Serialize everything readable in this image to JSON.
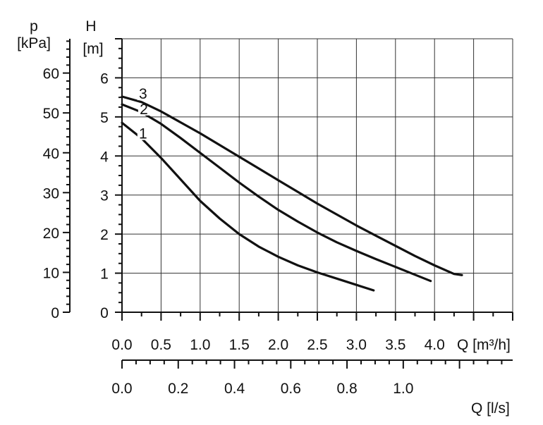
{
  "chart_data": {
    "type": "line",
    "axes": {
      "q_m3h": {
        "label": "Q [m³/h]",
        "range": [
          0,
          5
        ],
        "ticks": [
          "0.0",
          "0.5",
          "1.0",
          "1.5",
          "2.0",
          "2.5",
          "3.0",
          "3.5",
          "4.0"
        ]
      },
      "q_ls": {
        "label": "Q [l/s]",
        "range": [
          0,
          1.389
        ],
        "ticks": [
          "0.0",
          "0.2",
          "0.4",
          "0.6",
          "0.8",
          "1.0"
        ]
      },
      "h_m": {
        "label_name": "H",
        "label_unit": "[m]",
        "range": [
          0,
          7
        ],
        "ticks": [
          "0",
          "1",
          "2",
          "3",
          "4",
          "5",
          "6"
        ]
      },
      "p_kpa": {
        "label_name": "p",
        "label_unit": "[kPa]",
        "range": [
          0,
          68.6
        ],
        "ticks": [
          "0",
          "10",
          "20",
          "30",
          "40",
          "50",
          "60"
        ]
      }
    },
    "grid": true,
    "series": [
      {
        "name": "1",
        "x": [
          0,
          0.25,
          0.5,
          0.75,
          1.0,
          1.25,
          1.5,
          1.75,
          2.0,
          2.25,
          2.5,
          2.75,
          3.0,
          3.22
        ],
        "y": [
          4.85,
          4.45,
          3.95,
          3.4,
          2.85,
          2.4,
          2.0,
          1.68,
          1.42,
          1.2,
          1.02,
          0.86,
          0.7,
          0.56
        ]
      },
      {
        "name": "2",
        "x": [
          0,
          0.25,
          0.5,
          0.75,
          1.0,
          1.25,
          1.5,
          1.75,
          2.0,
          2.25,
          2.5,
          2.75,
          3.0,
          3.25,
          3.5,
          3.75,
          3.95
        ],
        "y": [
          5.32,
          5.12,
          4.82,
          4.46,
          4.08,
          3.7,
          3.32,
          2.96,
          2.62,
          2.32,
          2.04,
          1.79,
          1.57,
          1.36,
          1.16,
          0.96,
          0.8
        ]
      },
      {
        "name": "3",
        "x": [
          0,
          0.25,
          0.5,
          0.75,
          1.0,
          1.25,
          1.5,
          1.75,
          2.0,
          2.25,
          2.5,
          2.75,
          3.0,
          3.25,
          3.5,
          3.75,
          4.0,
          4.25,
          4.35
        ],
        "y": [
          5.52,
          5.38,
          5.14,
          4.86,
          4.58,
          4.28,
          3.98,
          3.68,
          3.38,
          3.08,
          2.78,
          2.5,
          2.22,
          1.96,
          1.7,
          1.44,
          1.2,
          0.98,
          0.95
        ]
      }
    ]
  }
}
